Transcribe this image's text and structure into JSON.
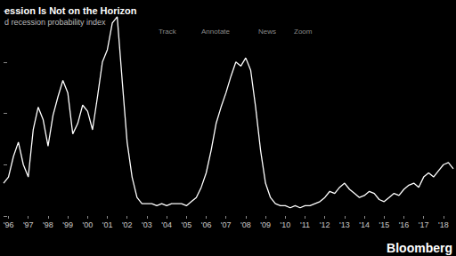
{
  "chart_data": {
    "type": "line",
    "title": "ession Is Not on the Horizon",
    "subtitle": "d recession probability index",
    "annotations": [
      "Track",
      "Annotate",
      "News",
      "Zoom"
    ],
    "source": "Bloomberg",
    "categories": [
      null,
      "'96",
      null,
      null,
      null,
      "'97",
      null,
      null,
      null,
      "'98",
      null,
      null,
      null,
      "'99",
      null,
      null,
      null,
      "'00",
      null,
      null,
      null,
      "'01",
      null,
      null,
      null,
      "'02",
      null,
      null,
      null,
      "'03",
      null,
      null,
      null,
      "'04",
      null,
      null,
      null,
      "'05",
      null,
      null,
      null,
      "'06",
      null,
      null,
      null,
      "'07",
      null,
      null,
      null,
      "'08",
      null,
      null,
      null,
      "'09",
      null,
      null,
      null,
      "'10",
      null,
      null,
      null,
      "'11",
      null,
      null,
      null,
      "'12",
      null,
      null,
      null,
      "'13",
      null,
      null,
      null,
      "'14",
      null,
      null,
      null,
      "'15",
      null,
      null,
      null,
      "'16",
      null,
      null,
      null,
      "'17",
      null,
      null,
      null,
      "'18",
      null,
      null
    ],
    "values": [
      0.16,
      0.19,
      0.29,
      0.36,
      0.25,
      0.19,
      0.42,
      0.53,
      0.47,
      0.34,
      0.49,
      0.58,
      0.66,
      0.6,
      0.4,
      0.45,
      0.54,
      0.51,
      0.42,
      0.58,
      0.75,
      0.81,
      0.94,
      0.97,
      0.66,
      0.36,
      0.19,
      0.09,
      0.06,
      0.06,
      0.06,
      0.05,
      0.06,
      0.05,
      0.06,
      0.06,
      0.06,
      0.05,
      0.07,
      0.09,
      0.14,
      0.21,
      0.32,
      0.45,
      0.53,
      0.6,
      0.68,
      0.75,
      0.73,
      0.77,
      0.71,
      0.53,
      0.32,
      0.16,
      0.09,
      0.06,
      0.05,
      0.05,
      0.04,
      0.05,
      0.04,
      0.05,
      0.05,
      0.06,
      0.07,
      0.09,
      0.12,
      0.11,
      0.14,
      0.16,
      0.13,
      0.11,
      0.09,
      0.1,
      0.12,
      0.11,
      0.08,
      0.07,
      0.09,
      0.11,
      0.1,
      0.13,
      0.15,
      0.16,
      0.14,
      0.19,
      0.21,
      0.19,
      0.22,
      0.25,
      0.26,
      0.23
    ],
    "color": "#ffffff",
    "ylim": [
      0,
      1
    ],
    "yticks": [
      0,
      0.25,
      0.5,
      0.75,
      1
    ],
    "grid": false,
    "tick_labels": "x"
  }
}
